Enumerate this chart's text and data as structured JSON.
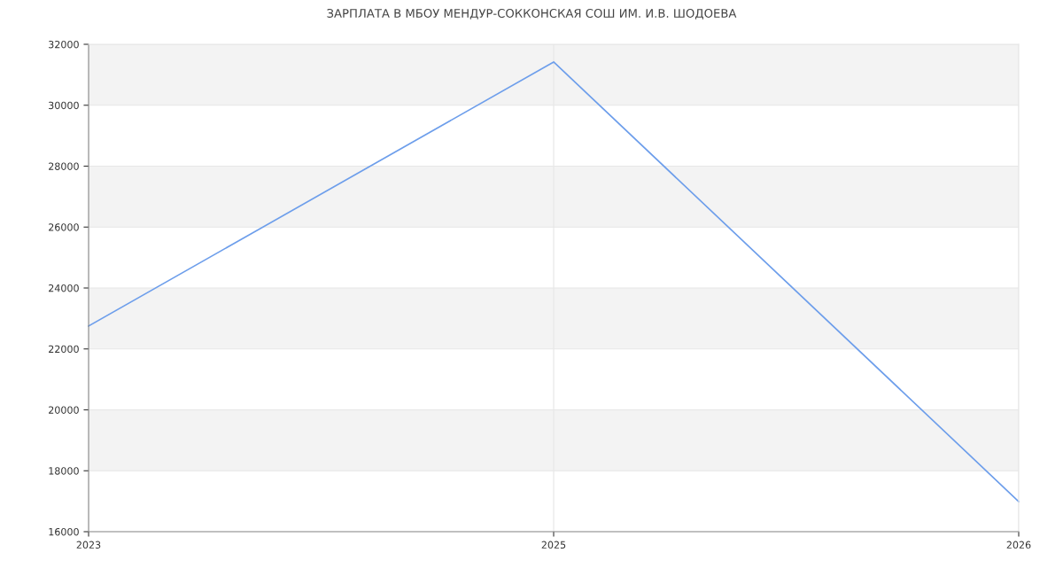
{
  "chart_data": {
    "type": "line",
    "title": "ЗАРПЛАТА В МБОУ МЕНДУР-СОККОНСКАЯ СОШ ИМ. И.В. ШОДОЕВА",
    "categories": [
      "2023",
      "2025",
      "2026"
    ],
    "series": [
      {
        "color": "#6d9eeb",
        "values": [
          22750,
          31420,
          16990
        ]
      }
    ],
    "ylim": [
      16000,
      32000
    ],
    "yticks": [
      16000,
      18000,
      20000,
      22000,
      24000,
      26000,
      28000,
      30000,
      32000
    ],
    "bands": [
      {
        "axis": "y",
        "from": 18000,
        "to": 20000,
        "color": "#f3f3f3"
      },
      {
        "axis": "y",
        "from": 22000,
        "to": 24000,
        "color": "#f3f3f3"
      },
      {
        "axis": "y",
        "from": 26000,
        "to": 28000,
        "color": "#f3f3f3"
      },
      {
        "axis": "y",
        "from": 30000,
        "to": 32000,
        "color": "#f3f3f3"
      }
    ],
    "grid": true,
    "marker": "none",
    "line_style": "solid",
    "legend": false
  }
}
